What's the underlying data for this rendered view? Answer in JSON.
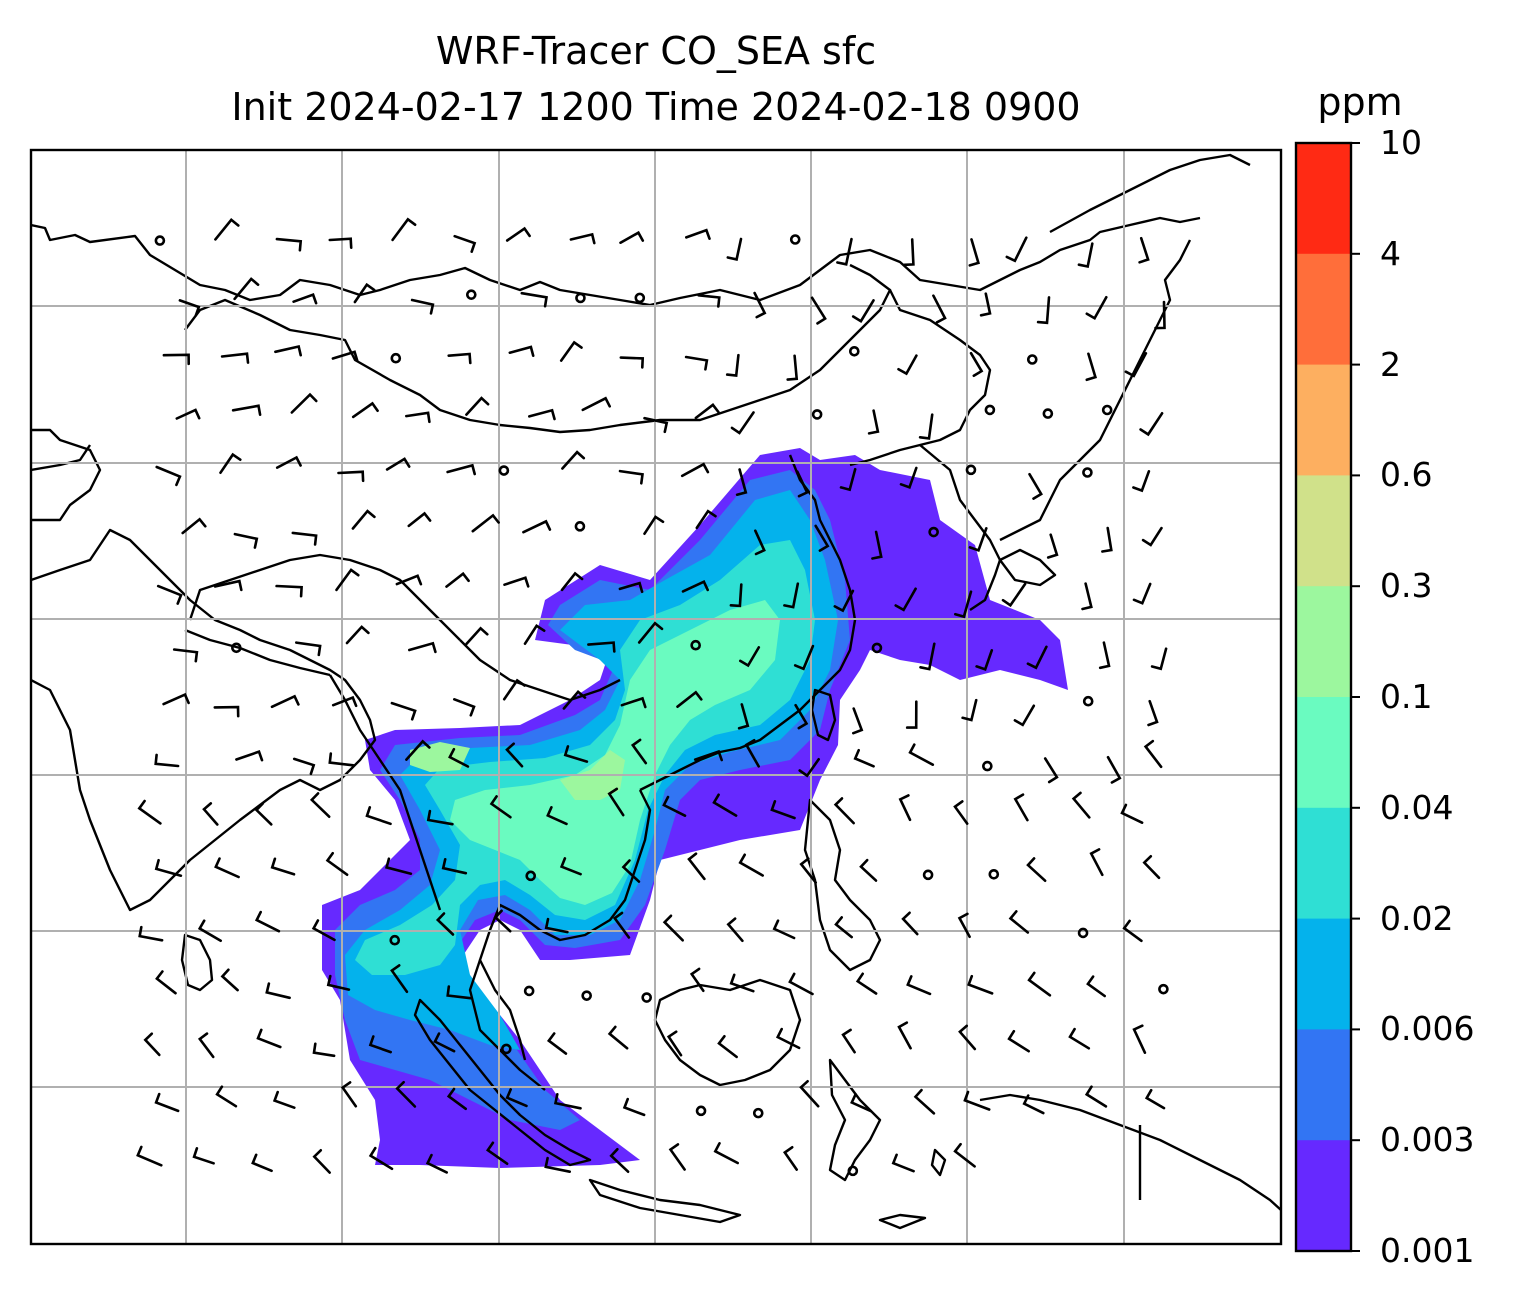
{
  "title": {
    "line1": "WRF-Tracer CO_SEA sfc",
    "line2": "Init 2024-02-17 1200 Time 2024-02-18 0900"
  },
  "colorbar": {
    "unit": "ppm",
    "labels": [
      "10",
      "4",
      "2",
      "0.6",
      "0.3",
      "0.1",
      "0.04",
      "0.02",
      "0.006",
      "0.003",
      "0.001"
    ],
    "colors": [
      "#ff2a14",
      "#ff6e3a",
      "#fdaf60",
      "#d0e18a",
      "#9cf79e",
      "#6afbc0",
      "#2fdfd4",
      "#04b2ec",
      "#3275f3",
      "#6629ff"
    ]
  },
  "map": {
    "field": "CO_SEA",
    "level": "sfc",
    "grid": true,
    "barbs": "wind barbs overlay",
    "background": "#ffffff",
    "coast_color": "#000000",
    "grid_color": "#b0b0b0"
  }
}
